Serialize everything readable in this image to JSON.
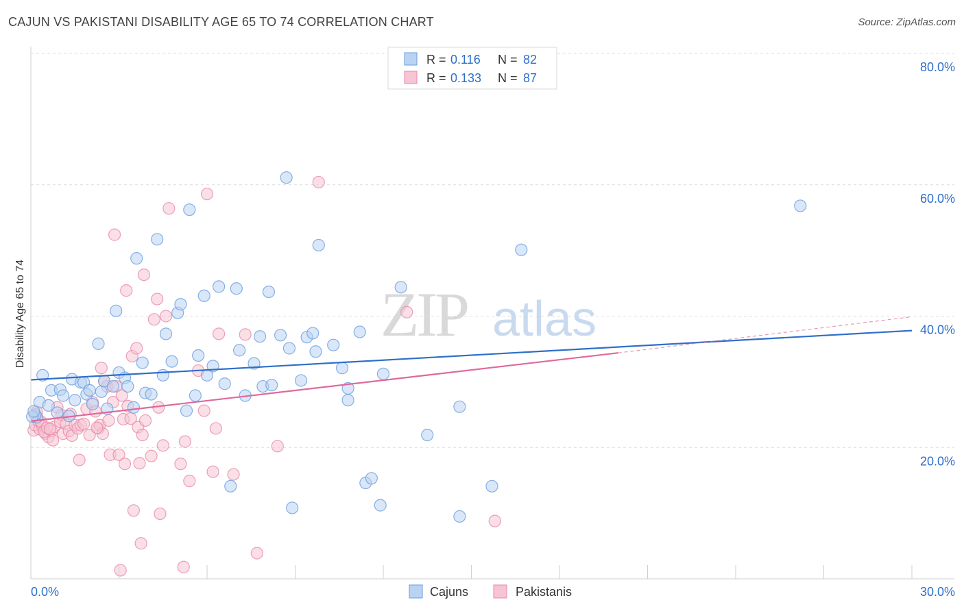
{
  "chart_data": {
    "type": "scatter",
    "title": "CAJUN VS PAKISTANI DISABILITY AGE 65 TO 74 CORRELATION CHART",
    "source": "Source: ZipAtlas.com",
    "xlabel": "",
    "ylabel": "Disability Age 65 to 74",
    "xlim": [
      0,
      30
    ],
    "ylim": [
      0,
      80
    ],
    "x_tick_labels": [
      "0.0%",
      "30.0%"
    ],
    "y_ticks": [
      20,
      40,
      60,
      80
    ],
    "y_tick_labels": [
      "20.0%",
      "40.0%",
      "60.0%",
      "80.0%"
    ],
    "grid": true,
    "legend_position": "top-center",
    "watermark": "ZIPatlas",
    "colors": {
      "cajuns": "#6a9ee0",
      "cajuns_fill": "#b9d3f3",
      "cajuns_line": "#2e6fc9",
      "pakistanis": "#e889a8",
      "pakistanis_fill": "#f6c4d4",
      "pakistanis_line": "#e0689a",
      "value_text": "#2e6fc9"
    },
    "legend": [
      {
        "r_label": "R = ",
        "r_value": "0.116",
        "n_label": "N = ",
        "n_value": "82"
      },
      {
        "r_label": "R = ",
        "r_value": "0.133",
        "n_label": "N = ",
        "n_value": "87"
      }
    ],
    "series": [
      {
        "name": "Cajuns",
        "trend": {
          "x0": 0,
          "y0": 30.3,
          "x1": 30,
          "y1": 37.8
        },
        "points": [
          [
            0.2,
            24.6
          ],
          [
            0.3,
            26.9
          ],
          [
            0.4,
            31
          ],
          [
            0.6,
            26.4
          ],
          [
            0.7,
            28.7
          ],
          [
            0.9,
            25.3
          ],
          [
            1.0,
            28.8
          ],
          [
            1.1,
            27.9
          ],
          [
            1.3,
            24.8
          ],
          [
            1.4,
            30.4
          ],
          [
            1.5,
            27.2
          ],
          [
            1.7,
            29.9
          ],
          [
            1.8,
            29.9
          ],
          [
            1.9,
            28.1
          ],
          [
            2.0,
            28.7
          ],
          [
            2.1,
            26.6
          ],
          [
            2.3,
            35.8
          ],
          [
            2.4,
            28.5
          ],
          [
            2.5,
            30.1
          ],
          [
            2.6,
            25.9
          ],
          [
            2.8,
            29.3
          ],
          [
            2.9,
            40.8
          ],
          [
            3.0,
            31.4
          ],
          [
            3.2,
            30.6
          ],
          [
            3.3,
            29.3
          ],
          [
            3.5,
            26.1
          ],
          [
            3.6,
            48.8
          ],
          [
            3.8,
            32.9
          ],
          [
            3.9,
            28.3
          ],
          [
            4.1,
            28.1
          ],
          [
            4.3,
            51.7
          ],
          [
            4.5,
            31
          ],
          [
            4.6,
            37.3
          ],
          [
            4.8,
            33.1
          ],
          [
            5.0,
            40.5
          ],
          [
            5.1,
            41.8
          ],
          [
            5.3,
            25.6
          ],
          [
            5.4,
            56.2
          ],
          [
            5.6,
            27.9
          ],
          [
            5.7,
            34
          ],
          [
            5.9,
            43.1
          ],
          [
            6.0,
            31
          ],
          [
            6.2,
            32.4
          ],
          [
            6.4,
            44.5
          ],
          [
            6.6,
            29.7
          ],
          [
            6.8,
            14.1
          ],
          [
            7.0,
            44.2
          ],
          [
            7.1,
            34.8
          ],
          [
            7.3,
            27.9
          ],
          [
            7.6,
            32.8
          ],
          [
            7.8,
            36.9
          ],
          [
            7.9,
            29.3
          ],
          [
            8.1,
            43.7
          ],
          [
            8.2,
            29.5
          ],
          [
            8.5,
            37.1
          ],
          [
            8.7,
            61.1
          ],
          [
            8.8,
            35.1
          ],
          [
            8.9,
            10.8
          ],
          [
            9.2,
            30.2
          ],
          [
            9.4,
            36.8
          ],
          [
            9.6,
            37.4
          ],
          [
            9.7,
            34.6
          ],
          [
            9.8,
            50.8
          ],
          [
            10.3,
            35.6
          ],
          [
            10.6,
            32.1
          ],
          [
            10.8,
            29
          ],
          [
            10.8,
            27.2
          ],
          [
            11.2,
            37.6
          ],
          [
            11.4,
            14.6
          ],
          [
            11.6,
            15.3
          ],
          [
            11.9,
            11.2
          ],
          [
            12.0,
            31.2
          ],
          [
            12.6,
            44.4
          ],
          [
            13.5,
            21.9
          ],
          [
            14.6,
            26.2
          ],
          [
            14.6,
            9.5
          ],
          [
            15.7,
            14.1
          ],
          [
            16.7,
            50.1
          ],
          [
            26.2,
            56.8
          ],
          [
            0.15,
            25.0
          ],
          [
            0.05,
            24.7
          ],
          [
            0.1,
            25.5
          ]
        ]
      },
      {
        "name": "Pakistanis",
        "trend": {
          "x0": 0,
          "y0": 24.0,
          "x1": 20.0,
          "y1": 34.4,
          "dash_x1": 30,
          "dash_y1": 39.9
        },
        "points": [
          [
            0.1,
            22.6
          ],
          [
            0.15,
            23.4
          ],
          [
            0.2,
            24.7
          ],
          [
            0.3,
            22.8
          ],
          [
            0.4,
            23.2
          ],
          [
            0.5,
            22.1
          ],
          [
            0.6,
            21.6
          ],
          [
            0.7,
            22.5
          ],
          [
            0.75,
            21.1
          ],
          [
            0.8,
            23.1
          ],
          [
            0.9,
            26.1
          ],
          [
            1.0,
            23.9
          ],
          [
            1.05,
            24.9
          ],
          [
            1.1,
            22.1
          ],
          [
            1.2,
            23.6
          ],
          [
            1.3,
            22.5
          ],
          [
            1.4,
            21.8
          ],
          [
            1.5,
            23.4
          ],
          [
            1.6,
            22.9
          ],
          [
            1.65,
            18.1
          ],
          [
            1.7,
            23.4
          ],
          [
            1.8,
            23.6
          ],
          [
            1.9,
            25.9
          ],
          [
            2.0,
            21.9
          ],
          [
            2.1,
            26.9
          ],
          [
            2.2,
            25.5
          ],
          [
            2.3,
            22.9
          ],
          [
            2.35,
            23.4
          ],
          [
            2.4,
            32.1
          ],
          [
            2.45,
            22.1
          ],
          [
            2.5,
            30.1
          ],
          [
            2.6,
            29.3
          ],
          [
            2.65,
            24.1
          ],
          [
            2.7,
            18.9
          ],
          [
            2.8,
            26.9
          ],
          [
            2.85,
            52.4
          ],
          [
            2.9,
            29.3
          ],
          [
            3.0,
            18.9
          ],
          [
            3.05,
            1.3
          ],
          [
            3.1,
            27.9
          ],
          [
            3.15,
            24.3
          ],
          [
            3.2,
            17.5
          ],
          [
            3.25,
            43.9
          ],
          [
            3.3,
            26.3
          ],
          [
            3.4,
            24.4
          ],
          [
            3.45,
            33.9
          ],
          [
            3.5,
            10.4
          ],
          [
            3.6,
            35.1
          ],
          [
            3.65,
            23.1
          ],
          [
            3.7,
            17.6
          ],
          [
            3.75,
            5.4
          ],
          [
            3.8,
            21.9
          ],
          [
            3.85,
            46.3
          ],
          [
            3.9,
            24.1
          ],
          [
            4.1,
            18.7
          ],
          [
            4.2,
            39.5
          ],
          [
            4.3,
            42.6
          ],
          [
            4.35,
            26.1
          ],
          [
            4.4,
            9.9
          ],
          [
            4.5,
            20.3
          ],
          [
            4.6,
            40.0
          ],
          [
            4.7,
            56.4
          ],
          [
            5.1,
            17.5
          ],
          [
            5.2,
            1.8
          ],
          [
            5.25,
            20.9
          ],
          [
            5.4,
            14.9
          ],
          [
            5.7,
            31.7
          ],
          [
            5.9,
            25.6
          ],
          [
            6.0,
            58.6
          ],
          [
            6.2,
            16.3
          ],
          [
            6.3,
            22.9
          ],
          [
            6.4,
            37.3
          ],
          [
            6.9,
            15.9
          ],
          [
            7.3,
            37.2
          ],
          [
            7.7,
            3.9
          ],
          [
            8.4,
            20.2
          ],
          [
            9.8,
            60.4
          ],
          [
            12.8,
            40.6
          ],
          [
            15.8,
            8.8
          ],
          [
            0.2,
            25.4
          ],
          [
            0.25,
            24.1
          ],
          [
            0.35,
            23.9
          ],
          [
            0.45,
            22.4
          ],
          [
            0.55,
            23.0
          ],
          [
            0.65,
            22.8
          ],
          [
            1.35,
            25.1
          ],
          [
            2.25,
            23.0
          ]
        ]
      }
    ]
  },
  "legend_bottom": [
    "Cajuns",
    "Pakistanis"
  ]
}
